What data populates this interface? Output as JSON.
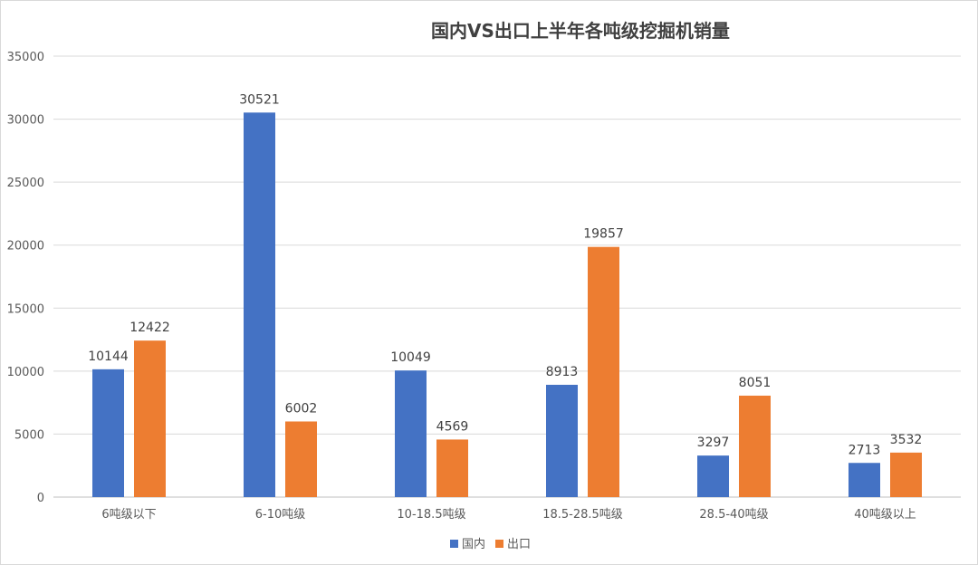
{
  "chart_data": {
    "type": "bar",
    "title": "国内VS出口上半年各吨级挖掘机销量",
    "categories": [
      "6吨级以下",
      "6-10吨级",
      "10-18.5吨级",
      "18.5-28.5吨级",
      "28.5-40吨级",
      "40吨级以上"
    ],
    "series": [
      {
        "name": "国内",
        "values": [
          10144,
          30521,
          10049,
          8913,
          3297,
          2713
        ],
        "color": "#4472c4"
      },
      {
        "name": "出口",
        "values": [
          12422,
          6002,
          4569,
          19857,
          8051,
          3532
        ],
        "color": "#ed7d31"
      }
    ],
    "ylim": [
      0,
      35000
    ],
    "yticks": [
      0,
      5000,
      10000,
      15000,
      20000,
      25000,
      30000,
      35000
    ],
    "grid": true,
    "legend": "bottom-center",
    "data_labels": true
  }
}
